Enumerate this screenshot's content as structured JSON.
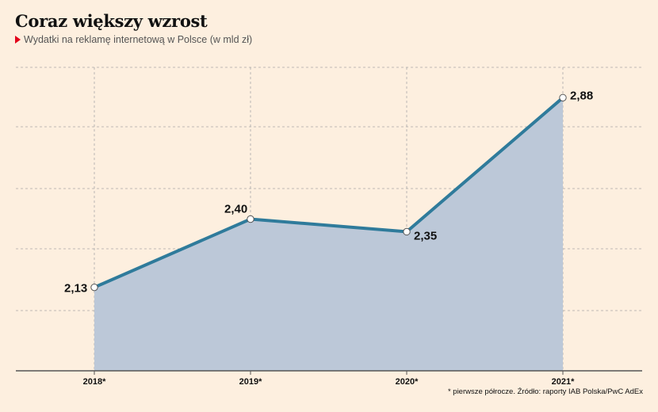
{
  "title": "Coraz większy wzrost",
  "subtitle": "Wydatki na reklamę internetową w Polsce (w mld zł)",
  "source": "* pierwsze półrocze. Źródło: raporty IAB Polska/PwC AdEx",
  "colors": {
    "background": "#fdefdf",
    "line": "#2f7b9b",
    "area": "#bcc8d8",
    "grid": "#a9a9a9",
    "accent": "#e2001a"
  },
  "chart_data": {
    "type": "area",
    "categories": [
      "2018*",
      "2019*",
      "2020*",
      "2021*"
    ],
    "values": [
      2.13,
      2.4,
      2.35,
      2.88
    ],
    "data_labels": [
      "2,13",
      "2,40",
      "2,35",
      "2,88"
    ],
    "ylim": [
      1.8,
      3.0
    ],
    "grid": true,
    "markers": true
  }
}
